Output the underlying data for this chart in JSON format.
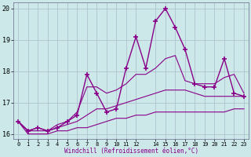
{
  "xlabel": "Windchill (Refroidissement éolien,°C)",
  "background_color": "#cce8e8",
  "line_color": "#880088",
  "grid_color": "#aabbcc",
  "hours": [
    0,
    1,
    2,
    3,
    4,
    5,
    6,
    7,
    8,
    9,
    10,
    11,
    12,
    13,
    14,
    15,
    16,
    17,
    18,
    19,
    20,
    21,
    22,
    23
  ],
  "temp_actual": [
    16.4,
    16.1,
    16.2,
    16.1,
    16.2,
    16.4,
    16.6,
    17.9,
    17.3,
    16.7,
    16.8,
    18.1,
    19.1,
    18.1,
    19.6,
    20.0,
    19.4,
    18.7,
    17.6,
    17.5,
    17.5,
    18.4,
    17.3,
    17.2
  ],
  "temp_max": [
    16.4,
    16.1,
    16.2,
    16.1,
    16.3,
    16.4,
    16.7,
    17.5,
    17.5,
    17.3,
    17.4,
    17.6,
    17.9,
    17.9,
    18.1,
    18.4,
    18.5,
    17.7,
    17.6,
    17.6,
    17.6,
    17.8,
    17.9,
    17.3
  ],
  "temp_mean": [
    16.4,
    16.1,
    16.1,
    16.1,
    16.2,
    16.3,
    16.4,
    16.6,
    16.8,
    16.8,
    16.9,
    17.0,
    17.1,
    17.2,
    17.3,
    17.4,
    17.4,
    17.4,
    17.3,
    17.2,
    17.2,
    17.2,
    17.2,
    17.2
  ],
  "temp_min": [
    16.4,
    16.0,
    16.0,
    16.0,
    16.1,
    16.1,
    16.2,
    16.2,
    16.3,
    16.4,
    16.5,
    16.5,
    16.6,
    16.6,
    16.7,
    16.7,
    16.7,
    16.7,
    16.7,
    16.7,
    16.7,
    16.7,
    16.8,
    16.8
  ],
  "ylim": [
    15.85,
    20.2
  ],
  "yticks": [
    16,
    17,
    18,
    19,
    20
  ],
  "xlim": [
    -0.5,
    23.5
  ],
  "xticks": [
    0,
    1,
    2,
    3,
    4,
    5,
    6,
    7,
    8,
    9,
    10,
    11,
    12,
    14,
    15,
    16,
    17,
    18,
    19,
    20,
    21,
    22,
    23
  ]
}
